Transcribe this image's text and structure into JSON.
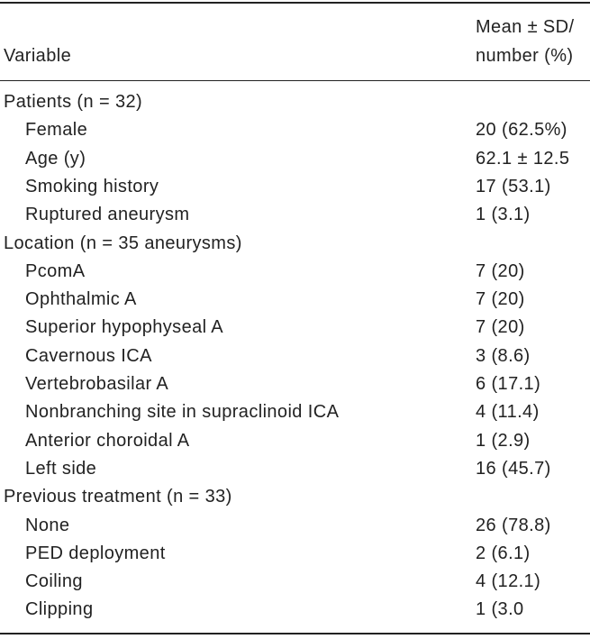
{
  "table": {
    "header": {
      "variable": "Variable",
      "value": [
        "Mean ± SD/",
        "number (%)"
      ]
    },
    "sections": [
      {
        "label": "Patients (n = 32)",
        "rows": [
          [
            "Female",
            "20 (62.5%)"
          ],
          [
            "Age (y)",
            "62.1 ± 12.5"
          ],
          [
            "Smoking history",
            "17 (53.1)"
          ],
          [
            "Ruptured aneurysm",
            "1 (3.1)"
          ]
        ]
      },
      {
        "label": "Location (n = 35 aneurysms)",
        "rows": [
          [
            "PcomA",
            "7 (20)"
          ],
          [
            "Ophthalmic A",
            "7 (20)"
          ],
          [
            "Superior hypophyseal A",
            "7 (20)"
          ],
          [
            "Cavernous ICA",
            "3 (8.6)"
          ],
          [
            "Vertebrobasilar A",
            "6 (17.1)"
          ],
          [
            "Nonbranching site in supraclinoid ICA",
            "4 (11.4)"
          ],
          [
            "Anterior choroidal A",
            "1 (2.9)"
          ],
          [
            "Left side",
            "16 (45.7)"
          ]
        ]
      },
      {
        "label": "Previous treatment (n = 33)",
        "rows": [
          [
            "None",
            "26 (78.8)"
          ],
          [
            "PED deployment",
            "2 (6.1)"
          ],
          [
            "Coiling",
            "4 (12.1)"
          ],
          [
            "Clipping",
            "1 (3.0"
          ]
        ]
      }
    ]
  }
}
